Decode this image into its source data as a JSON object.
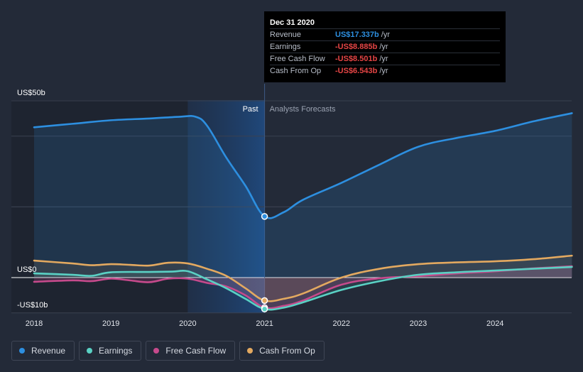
{
  "chart_data": {
    "type": "line",
    "title": "",
    "xlabel": "",
    "ylabel": "",
    "ylim": [
      -10,
      50
    ],
    "xlim": [
      2018,
      2025
    ],
    "x_ticks": [
      2018,
      2019,
      2020,
      2021,
      2022,
      2023,
      2024
    ],
    "x_tick_labels": [
      "2018",
      "2019",
      "2020",
      "2021",
      "2022",
      "2023",
      "2024"
    ],
    "y_tick_labels": [
      {
        "value": 50,
        "label": "US$50b"
      },
      {
        "value": 0,
        "label": "US$0"
      },
      {
        "value": -10,
        "label": "-US$10b"
      }
    ],
    "past_label": "Past",
    "forecast_label": "Analysts Forecasts",
    "highlight_range": [
      2020,
      2021
    ],
    "divider_x": 2021,
    "series": [
      {
        "name": "Revenue",
        "color": "#2d8fe0",
        "x": [
          2018,
          2018.5,
          2019,
          2019.5,
          2019.9,
          2020.1,
          2020.25,
          2020.5,
          2020.75,
          2021,
          2021.25,
          2021.5,
          2022,
          2022.5,
          2023,
          2023.5,
          2024,
          2024.5,
          2025
        ],
        "values": [
          42.5,
          43.5,
          44.5,
          45,
          45.5,
          45.5,
          43,
          34,
          26,
          17.3,
          18.5,
          22,
          26.8,
          32,
          37,
          39.5,
          41.5,
          44.2,
          46.5
        ]
      },
      {
        "name": "Earnings",
        "color": "#5ad1c4",
        "x": [
          2018,
          2018.5,
          2018.75,
          2019,
          2019.5,
          2019.8,
          2020,
          2020.25,
          2020.5,
          2020.75,
          2021,
          2021.25,
          2021.5,
          2022,
          2022.5,
          2023,
          2023.5,
          2024,
          2024.5,
          2025
        ],
        "values": [
          1.2,
          0.8,
          0.5,
          1.5,
          1.6,
          1.7,
          1.8,
          -0.5,
          -3,
          -6,
          -8.9,
          -8.5,
          -7,
          -3.5,
          -1,
          0.8,
          1.5,
          2,
          2.5,
          3
        ]
      },
      {
        "name": "Free Cash Flow",
        "color": "#c64a8c",
        "x": [
          2018,
          2018.5,
          2018.75,
          2019,
          2019.25,
          2019.5,
          2019.75,
          2020,
          2020.25,
          2020.5,
          2020.75,
          2021,
          2021.25,
          2021.5,
          2022,
          2022.5,
          2023,
          2023.5,
          2024,
          2024.5,
          2025
        ],
        "values": [
          -1.2,
          -0.8,
          -1,
          -0.3,
          -0.8,
          -1.3,
          -0.3,
          -0.3,
          -1.5,
          -2.5,
          -5,
          -8.5,
          -8,
          -6.5,
          -2,
          -0.2,
          0.4,
          1.2,
          1.8,
          2.6,
          3.2
        ]
      },
      {
        "name": "Cash From Op",
        "color": "#e3a960",
        "x": [
          2018,
          2018.5,
          2018.75,
          2019,
          2019.25,
          2019.5,
          2019.75,
          2020,
          2020.25,
          2020.5,
          2020.75,
          2021,
          2021.25,
          2021.5,
          2022,
          2022.5,
          2023,
          2023.5,
          2024,
          2024.5,
          2025
        ],
        "values": [
          4.8,
          4,
          3.5,
          3.8,
          3.6,
          3.4,
          4.2,
          4,
          2.5,
          0.5,
          -3,
          -6.5,
          -6,
          -4.5,
          0,
          2.5,
          3.8,
          4.3,
          4.6,
          5.2,
          6.2
        ]
      }
    ],
    "markers": [
      {
        "series": "Revenue",
        "x": 2021,
        "value": 17.3
      },
      {
        "series": "Cash From Op",
        "x": 2021,
        "value": -6.5
      },
      {
        "series": "Free Cash Flow",
        "x": 2021,
        "value": -8.5
      },
      {
        "series": "Earnings",
        "x": 2021,
        "value": -8.9
      }
    ]
  },
  "tooltip": {
    "date": "Dec 31 2020",
    "rows": [
      {
        "label": "Revenue",
        "value": "US$17.337b",
        "unit": "/yr",
        "color": "#2d8fe0"
      },
      {
        "label": "Earnings",
        "value": "-US$8.885b",
        "unit": "/yr",
        "color": "#e64545"
      },
      {
        "label": "Free Cash Flow",
        "value": "-US$8.501b",
        "unit": "/yr",
        "color": "#e64545"
      },
      {
        "label": "Cash From Op",
        "value": "-US$6.543b",
        "unit": "/yr",
        "color": "#e64545"
      }
    ]
  },
  "legend": [
    {
      "label": "Revenue",
      "color": "#2d8fe0"
    },
    {
      "label": "Earnings",
      "color": "#5ad1c4"
    },
    {
      "label": "Free Cash Flow",
      "color": "#c64a8c"
    },
    {
      "label": "Cash From Op",
      "color": "#e3a960"
    }
  ]
}
